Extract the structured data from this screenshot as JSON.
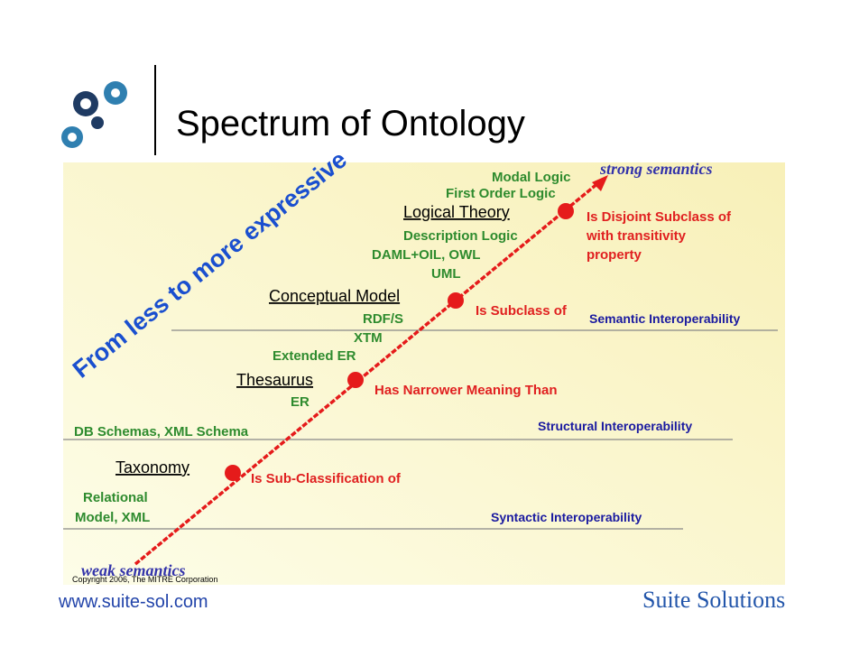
{
  "header": {
    "title": "Spectrum of Ontology"
  },
  "diagram": {
    "axis_label": "From less to more expressive",
    "strong": "strong semantics",
    "weak": "weak semantics",
    "levels": [
      "Taxonomy",
      "Thesaurus",
      "Conceptual Model",
      "Logical Theory"
    ],
    "relations": [
      "Is Sub-Classification of",
      "Has Narrower Meaning Than",
      "Is Subclass of",
      [
        "Is Disjoint Subclass of",
        "with transitivity",
        "property"
      ]
    ],
    "technologies": [
      [
        "Relational",
        "Model, XML"
      ],
      "DB Schemas, XML Schema",
      "ER",
      "Extended ER",
      "XTM",
      "RDF/S",
      "UML",
      "DAML+OIL, OWL",
      "Description Logic",
      "First Order Logic",
      "Modal Logic"
    ],
    "interoperability": [
      "Syntactic Interoperability",
      "Structural Interoperability",
      "Semantic Interoperability"
    ]
  },
  "footer": {
    "copyright": "Copyright 2006, The MITRE Corporation",
    "url": "www.suite-sol.com",
    "company": "Suite Solutions"
  }
}
